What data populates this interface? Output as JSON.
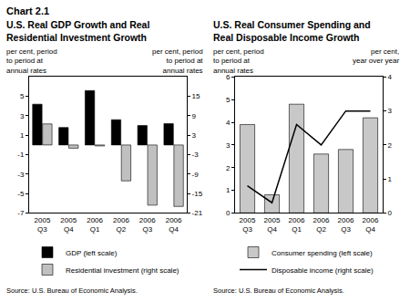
{
  "title": "Chart 2.1",
  "chart_data": [
    {
      "type": "bar",
      "title": "U.S. Real GDP Growth and Real\nResidential Investment Growth",
      "ylabel": "per cent, period\nto period at\nannual rates",
      "y2label": "per cent, period\nto period at\nannual rates",
      "source": "Source: U.S. Bureau of Economic Analysis.",
      "categories": [
        "2005 Q3",
        "2005 Q4",
        "2006 Q1",
        "2006 Q2",
        "2006 Q3",
        "2006 Q4"
      ],
      "series": [
        {
          "name": "GDP (left scale)",
          "color": "#000000",
          "values": [
            4.2,
            1.8,
            5.6,
            2.6,
            2.0,
            2.2
          ]
        },
        {
          "name": "Residential investment (right scale)",
          "color": "#c0c0c0",
          "axis": "y2",
          "values": [
            6.5,
            -1.0,
            -0.3,
            -11.1,
            -18.6,
            -19.0
          ]
        }
      ],
      "ylim": [
        -7,
        7
      ],
      "yticks": [
        -7,
        -5,
        -3,
        -1,
        1,
        3,
        5
      ],
      "y2lim": [
        -21,
        21
      ],
      "y2ticks": [
        -21,
        -15,
        -9,
        -3,
        3,
        9,
        15
      ],
      "grid": false
    },
    {
      "type": "bar",
      "title": "U.S. Real Consumer Spending and\nReal Disposable Income Growth",
      "ylabel": "per cent, period\nto period at\nannual rates",
      "y2label": "per cent,\nyear over year",
      "source": "Source: U.S. Bureau of Economic Analysis.",
      "categories": [
        "2005 Q3",
        "2005 Q4",
        "2006 Q1",
        "2006 Q2",
        "2006 Q3",
        "2006 Q4"
      ],
      "series": [
        {
          "name": "Consumer spending (left scale)",
          "color": "#c8c8c8",
          "values": [
            3.9,
            0.8,
            4.8,
            2.6,
            2.8,
            4.2
          ]
        },
        {
          "name": "Disposable income (right scale)",
          "color": "#000000",
          "type": "line",
          "axis": "y2",
          "values": [
            0.8,
            0.3,
            2.6,
            2.0,
            3.0,
            3.0
          ]
        }
      ],
      "ylim": [
        0,
        6
      ],
      "yticks": [
        0,
        1,
        2,
        3,
        4,
        5,
        6
      ],
      "y2lim": [
        0,
        4
      ],
      "y2ticks": [
        0,
        1,
        2,
        3,
        4
      ],
      "grid": false
    }
  ]
}
